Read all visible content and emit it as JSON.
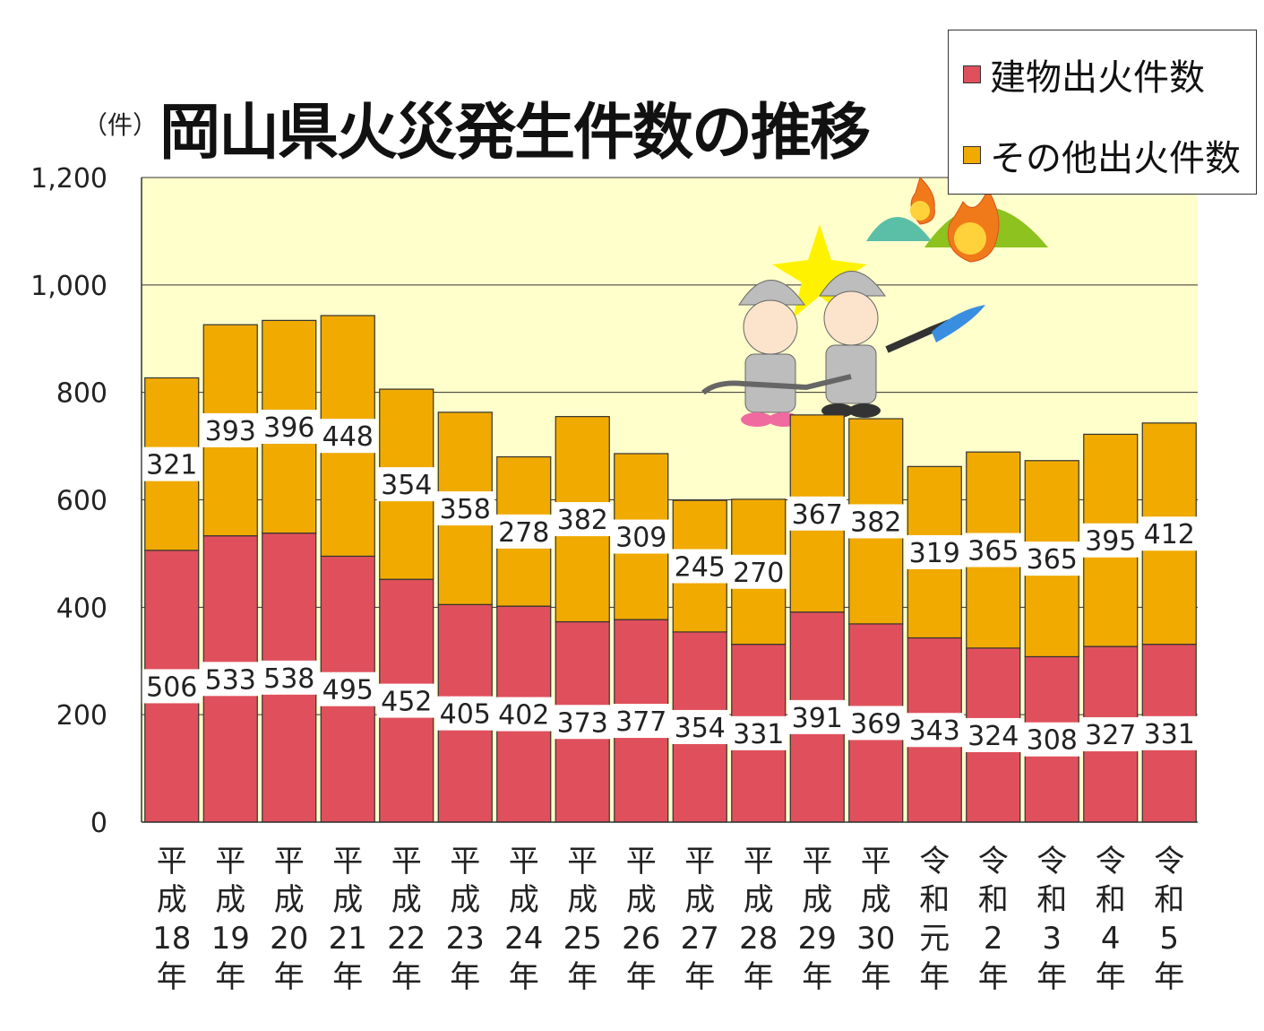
{
  "chart_data": {
    "type": "bar",
    "stacked": true,
    "title": "岡山県火災発生件数の推移",
    "ylabel": "（件）",
    "ylim": [
      0,
      1200
    ],
    "yticks": [
      "0",
      "200",
      "400",
      "600",
      "800",
      "1,000",
      "1,200"
    ],
    "grid": true,
    "legend_position": "top-right",
    "categories": [
      [
        "平",
        "成",
        "18",
        "年"
      ],
      [
        "平",
        "成",
        "19",
        "年"
      ],
      [
        "平",
        "成",
        "20",
        "年"
      ],
      [
        "平",
        "成",
        "21",
        "年"
      ],
      [
        "平",
        "成",
        "22",
        "年"
      ],
      [
        "平",
        "成",
        "23",
        "年"
      ],
      [
        "平",
        "成",
        "24",
        "年"
      ],
      [
        "平",
        "成",
        "25",
        "年"
      ],
      [
        "平",
        "成",
        "26",
        "年"
      ],
      [
        "平",
        "成",
        "27",
        "年"
      ],
      [
        "平",
        "成",
        "28",
        "年"
      ],
      [
        "平",
        "成",
        "29",
        "年"
      ],
      [
        "平",
        "成",
        "30",
        "年"
      ],
      [
        "令",
        "和",
        "元",
        "年"
      ],
      [
        "令",
        "和",
        "2",
        "年"
      ],
      [
        "令",
        "和",
        "3",
        "年"
      ],
      [
        "令",
        "和",
        "4",
        "年"
      ],
      [
        "令",
        "和",
        "5",
        "年"
      ]
    ],
    "series": [
      {
        "name": "建物出火件数",
        "color": "#E0505C",
        "values": [
          506,
          533,
          538,
          495,
          452,
          405,
          402,
          373,
          377,
          354,
          331,
          391,
          369,
          343,
          324,
          308,
          327,
          331
        ]
      },
      {
        "name": "その他出火件数",
        "color": "#F0AA00",
        "values": [
          321,
          393,
          396,
          448,
          354,
          358,
          278,
          382,
          309,
          245,
          270,
          367,
          382,
          319,
          365,
          365,
          395,
          412
        ]
      }
    ],
    "plot_background": "#FFFFCC"
  }
}
